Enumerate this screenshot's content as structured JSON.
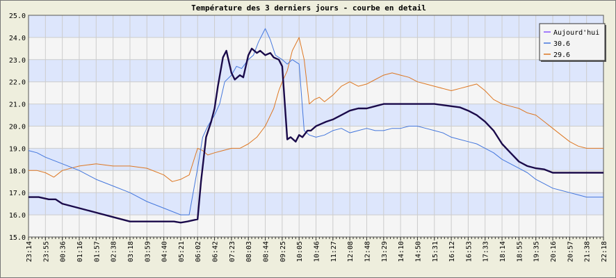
{
  "chart_data": {
    "type": "line",
    "title": "Température des 3 derniers jours - courbe en detail",
    "ylim": [
      15.0,
      25.0
    ],
    "y_ticks": [
      "15.0",
      "16.0",
      "17.0",
      "18.0",
      "19.0",
      "20.0",
      "21.0",
      "22.0",
      "23.0",
      "24.0",
      "25.0"
    ],
    "x_ticks": [
      "23:14",
      "23:55",
      "00:36",
      "01:16",
      "01:57",
      "02:38",
      "03:18",
      "03:59",
      "04:40",
      "05:21",
      "06:02",
      "06:42",
      "07:23",
      "08:03",
      "08:44",
      "09:25",
      "10:05",
      "10:46",
      "11:27",
      "12:08",
      "12:48",
      "13:29",
      "14:10",
      "14:50",
      "15:31",
      "16:12",
      "16:53",
      "17:33",
      "18:14",
      "18:55",
      "19:35",
      "20:16",
      "20:57",
      "21:38",
      "22:18"
    ],
    "grid": true,
    "background_bands": [
      "#dde6fc",
      "#f5f5f5"
    ],
    "legend_position": "top-right",
    "series": [
      {
        "name": "Aujourd'hui",
        "color": "#1a0a4a",
        "legend_color": "#8855ff",
        "width": 2.4,
        "x": [
          0,
          0.6,
          1.2,
          1.6,
          2,
          3,
          4,
          5,
          6,
          7,
          8,
          8.6,
          9,
          9.4,
          9.7,
          10,
          10.2,
          10.5,
          10.8,
          11,
          11.2,
          11.5,
          11.7,
          12,
          12.2,
          12.5,
          12.7,
          13,
          13.2,
          13.5,
          13.7,
          14,
          14.3,
          14.5,
          14.8,
          15,
          15.3,
          15.5,
          15.8,
          16,
          16.2,
          16.5,
          16.7,
          17,
          17.3,
          17.6,
          18,
          18.5,
          19,
          19.5,
          20,
          20.5,
          21,
          21.5,
          22,
          22.5,
          23,
          23.5,
          24,
          24.5,
          25,
          25.5,
          26,
          26.5,
          27,
          27.5,
          28,
          28.5,
          29,
          29.5,
          30,
          30.5,
          31,
          31.5,
          32,
          32.5,
          33,
          33.5,
          34
        ],
        "values": [
          16.8,
          16.8,
          16.7,
          16.7,
          16.5,
          16.3,
          16.1,
          15.9,
          15.7,
          15.7,
          15.7,
          15.7,
          15.65,
          15.7,
          15.75,
          15.8,
          17.5,
          19.5,
          20.2,
          20.8,
          21.8,
          23.1,
          23.4,
          22.4,
          22.1,
          22.3,
          22.2,
          23.2,
          23.5,
          23.3,
          23.4,
          23.2,
          23.3,
          23.1,
          23.0,
          22.7,
          19.4,
          19.5,
          19.3,
          19.6,
          19.5,
          19.8,
          19.8,
          20.0,
          20.1,
          20.2,
          20.3,
          20.5,
          20.7,
          20.8,
          20.8,
          20.9,
          21.0,
          21.0,
          21.0,
          21.0,
          21.0,
          21.0,
          21.0,
          20.95,
          20.9,
          20.85,
          20.7,
          20.5,
          20.2,
          19.8,
          19.2,
          18.8,
          18.4,
          18.2,
          18.1,
          18.05,
          17.9,
          17.9,
          17.9,
          17.9,
          17.9,
          17.9,
          17.9
        ]
      },
      {
        "name": "30.6",
        "color": "#4477dd",
        "width": 1,
        "x": [
          0,
          0.5,
          1,
          2,
          3,
          4,
          5,
          6,
          7,
          8,
          9,
          9.5,
          10,
          10.3,
          10.6,
          11,
          11.3,
          11.6,
          12,
          12.3,
          12.6,
          13,
          13.3,
          13.6,
          14,
          14.3,
          14.6,
          15,
          15.3,
          15.6,
          16,
          16.3,
          16.6,
          17,
          17.5,
          18,
          18.5,
          19,
          19.5,
          20,
          20.5,
          21,
          21.5,
          22,
          22.5,
          23,
          23.5,
          24,
          24.5,
          25,
          25.5,
          26,
          26.5,
          27,
          27.5,
          28,
          28.5,
          29,
          29.5,
          30,
          30.5,
          31,
          31.5,
          32,
          32.5,
          33,
          33.5,
          34
        ],
        "values": [
          18.9,
          18.8,
          18.6,
          18.3,
          18.0,
          17.6,
          17.3,
          17.0,
          16.6,
          16.3,
          16.0,
          16.0,
          18.1,
          19.5,
          20.0,
          20.5,
          21.0,
          22.0,
          22.3,
          22.7,
          22.6,
          23.0,
          23.2,
          23.8,
          24.4,
          23.9,
          23.2,
          23.0,
          22.8,
          23.0,
          22.8,
          19.8,
          19.6,
          19.5,
          19.6,
          19.8,
          19.9,
          19.7,
          19.8,
          19.9,
          19.8,
          19.8,
          19.9,
          19.9,
          20.0,
          20.0,
          19.9,
          19.8,
          19.7,
          19.5,
          19.4,
          19.3,
          19.2,
          19.0,
          18.8,
          18.5,
          18.3,
          18.1,
          17.9,
          17.6,
          17.4,
          17.2,
          17.1,
          17.0,
          16.9,
          16.8,
          16.8,
          16.8
        ]
      },
      {
        "name": "29.6",
        "color": "#dd7722",
        "width": 1,
        "x": [
          0,
          0.5,
          1,
          1.5,
          2,
          3,
          4,
          5,
          6,
          7,
          8,
          8.5,
          9,
          9.5,
          10,
          10.3,
          10.6,
          11,
          11.5,
          12,
          12.5,
          13,
          13.5,
          14,
          14.5,
          14.8,
          15,
          15.3,
          15.6,
          16,
          16.3,
          16.6,
          16.9,
          17.2,
          17.5,
          18,
          18.5,
          19,
          19.5,
          20,
          20.5,
          21,
          21.5,
          22,
          22.5,
          23,
          23.5,
          24,
          24.5,
          25,
          25.5,
          26,
          26.5,
          27,
          27.5,
          28,
          28.5,
          29,
          29.5,
          30,
          30.5,
          31,
          31.5,
          32,
          32.5,
          33,
          33.5,
          34
        ],
        "values": [
          18.0,
          18.0,
          17.9,
          17.7,
          18.0,
          18.2,
          18.3,
          18.2,
          18.2,
          18.1,
          17.8,
          17.5,
          17.6,
          17.8,
          19.0,
          18.9,
          18.7,
          18.8,
          18.9,
          19.0,
          19.0,
          19.2,
          19.5,
          20.0,
          20.8,
          21.6,
          22.0,
          22.5,
          23.4,
          24.0,
          23.0,
          21.0,
          21.2,
          21.3,
          21.1,
          21.4,
          21.8,
          22.0,
          21.8,
          21.9,
          22.1,
          22.3,
          22.4,
          22.3,
          22.2,
          22.0,
          21.9,
          21.8,
          21.7,
          21.6,
          21.7,
          21.8,
          21.9,
          21.6,
          21.2,
          21.0,
          20.9,
          20.8,
          20.6,
          20.5,
          20.2,
          19.9,
          19.6,
          19.3,
          19.1,
          19.0,
          19.0,
          19.0
        ]
      }
    ]
  }
}
